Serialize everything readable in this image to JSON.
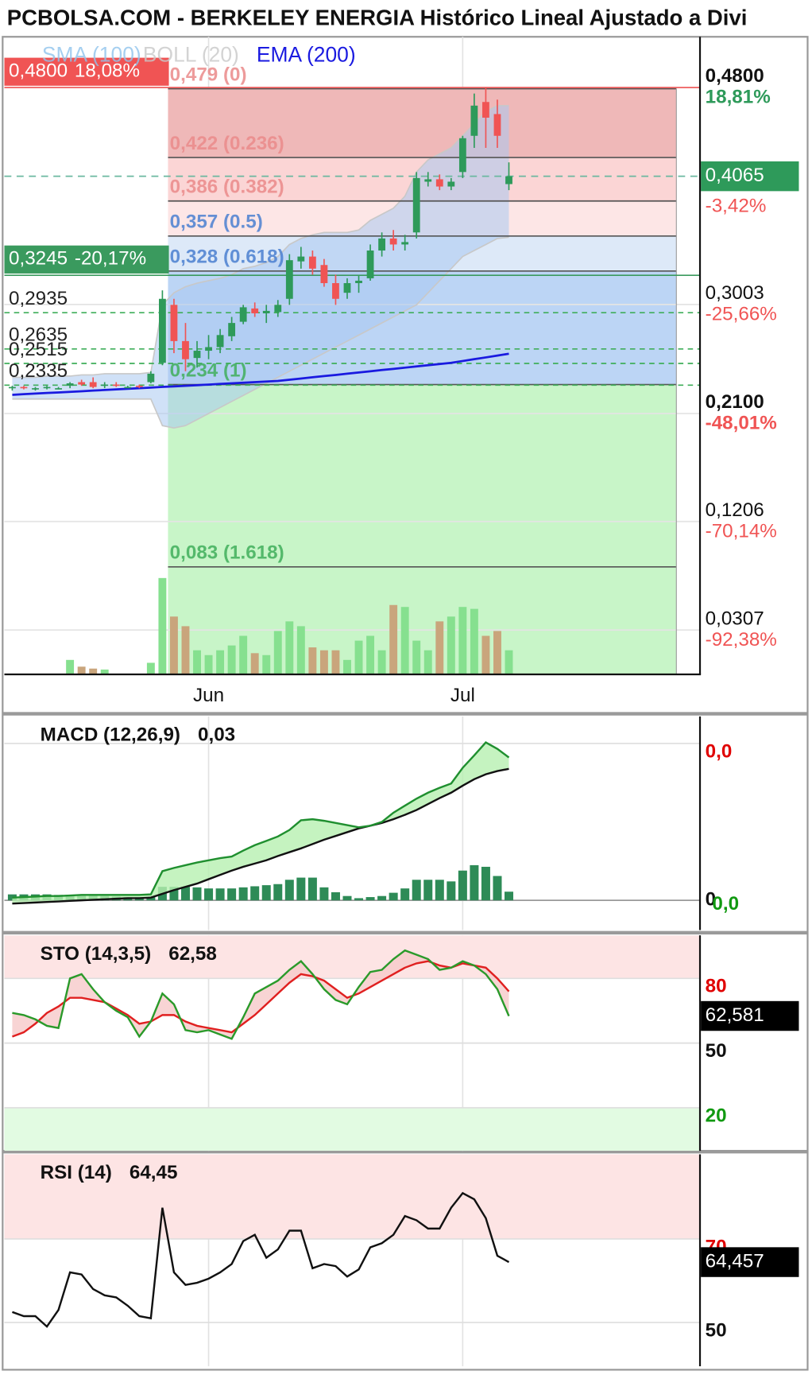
{
  "title": "PCBOLSA.COM - BERKELEY ENERGIA Histórico Lineal Ajustado a Divi",
  "chart_data": [
    {
      "type": "candlestick",
      "categories": [
        null,
        null,
        null,
        null,
        null,
        null,
        null,
        null,
        null,
        null,
        null,
        null,
        null,
        null,
        null,
        null,
        null,
        "Jun",
        null,
        null,
        null,
        null,
        null,
        null,
        null,
        null,
        null,
        null,
        null,
        null,
        null,
        null,
        null,
        null,
        null,
        null,
        null,
        null,
        null,
        "Jul",
        null,
        null,
        null,
        null
      ],
      "open": [
        0.231,
        0.232,
        0.231,
        0.232,
        0.231,
        0.233,
        0.236,
        0.236,
        0.233,
        0.234,
        0.232,
        0.233,
        0.236,
        0.252,
        0.3,
        0.27,
        0.256,
        0.262,
        0.265,
        0.274,
        0.286,
        0.297,
        0.293,
        0.294,
        0.305,
        0.336,
        0.34,
        0.333,
        0.318,
        0.31,
        0.318,
        0.322,
        0.345,
        0.355,
        0.35,
        0.36,
        0.402,
        0.404,
        0.398,
        0.41,
        0.44,
        0.468,
        0.458,
        0.4
      ],
      "high": [
        0.233,
        0.233,
        0.232,
        0.233,
        0.232,
        0.236,
        0.238,
        0.24,
        0.236,
        0.236,
        0.233,
        0.234,
        0.245,
        0.312,
        0.305,
        0.285,
        0.27,
        0.275,
        0.28,
        0.29,
        0.3,
        0.302,
        0.3,
        0.304,
        0.342,
        0.348,
        0.345,
        0.338,
        0.325,
        0.322,
        0.324,
        0.35,
        0.36,
        0.362,
        0.358,
        0.41,
        0.41,
        0.408,
        0.405,
        0.44,
        0.475,
        0.48,
        0.47,
        0.418
      ],
      "low": [
        0.229,
        0.23,
        0.229,
        0.23,
        0.23,
        0.231,
        0.233,
        0.231,
        0.231,
        0.232,
        0.231,
        0.231,
        0.235,
        0.25,
        0.26,
        0.245,
        0.248,
        0.255,
        0.26,
        0.27,
        0.284,
        0.29,
        0.285,
        0.29,
        0.3,
        0.33,
        0.325,
        0.315,
        0.3,
        0.305,
        0.31,
        0.32,
        0.34,
        0.345,
        0.345,
        0.355,
        0.398,
        0.395,
        0.395,
        0.405,
        0.43,
        0.43,
        0.43,
        0.395
      ],
      "close": [
        0.232,
        0.231,
        0.231,
        0.232,
        0.231,
        0.235,
        0.234,
        0.232,
        0.234,
        0.233,
        0.232,
        0.232,
        0.243,
        0.305,
        0.27,
        0.255,
        0.262,
        0.265,
        0.275,
        0.285,
        0.298,
        0.293,
        0.295,
        0.3,
        0.337,
        0.34,
        0.33,
        0.318,
        0.305,
        0.318,
        0.32,
        0.345,
        0.355,
        0.35,
        0.352,
        0.405,
        0.404,
        0.398,
        0.402,
        0.438,
        0.465,
        0.455,
        0.44,
        0.4065
      ],
      "up_color": "#2e9a5a",
      "down_color": "#f05454",
      "volume": [
        0,
        0,
        0,
        0,
        0,
        15,
        8,
        6,
        5,
        0,
        0,
        0,
        12,
        100,
        60,
        50,
        25,
        20,
        25,
        30,
        40,
        22,
        20,
        45,
        55,
        50,
        28,
        25,
        25,
        15,
        35,
        40,
        25,
        72,
        70,
        35,
        25,
        55,
        60,
        70,
        68,
        40,
        45,
        25
      ],
      "volume_colors": [
        "#86e08f",
        "#c9a57c"
      ],
      "series": [
        {
          "name": "SMA (100)",
          "color": "#8fc3ec"
        },
        {
          "name": "BOLL (20)",
          "color": "#c8c8c8",
          "fill": "#a9c9f0",
          "upper": [
            0.24,
            0.24,
            0.24,
            0.241,
            0.241,
            0.241,
            0.242,
            0.242,
            0.243,
            0.243,
            0.243,
            0.243,
            0.244,
            0.3,
            0.31,
            0.315,
            0.318,
            0.32,
            0.322,
            0.325,
            0.33,
            0.332,
            0.335,
            0.34,
            0.35,
            0.355,
            0.358,
            0.36,
            0.36,
            0.36,
            0.362,
            0.37,
            0.375,
            0.38,
            0.39,
            0.41,
            0.42,
            0.425,
            0.43,
            0.44,
            0.45,
            0.46,
            0.465,
            0.465
          ],
          "lower": [
            0.222,
            0.222,
            0.222,
            0.222,
            0.222,
            0.222,
            0.222,
            0.222,
            0.222,
            0.222,
            0.222,
            0.222,
            0.222,
            0.2,
            0.198,
            0.2,
            0.205,
            0.21,
            0.215,
            0.22,
            0.225,
            0.23,
            0.235,
            0.24,
            0.245,
            0.25,
            0.255,
            0.26,
            0.265,
            0.27,
            0.275,
            0.28,
            0.285,
            0.29,
            0.295,
            0.3,
            0.31,
            0.32,
            0.33,
            0.34,
            0.345,
            0.35,
            0.355,
            0.356
          ]
        },
        {
          "name": "EMA (200)",
          "color": "#1a1ae0",
          "values": [
            0.2255,
            0.226,
            0.2265,
            0.227,
            0.2275,
            0.228,
            0.2285,
            0.229,
            0.2295,
            0.23,
            0.2305,
            0.231,
            0.2315,
            0.232,
            0.2325,
            0.233,
            0.2335,
            0.234,
            0.2345,
            0.235,
            0.2355,
            0.236,
            0.2365,
            0.237,
            0.238,
            0.239,
            0.24,
            0.241,
            0.242,
            0.243,
            0.244,
            0.245,
            0.246,
            0.247,
            0.248,
            0.249,
            0.25,
            0.251,
            0.252,
            0.2535,
            0.255,
            0.2565,
            0.258,
            0.2595
          ]
        }
      ],
      "ylim": [
        -0.006,
        0.522
      ],
      "yticks": [
        {
          "value": 0.48,
          "label": "0,4800"
        },
        {
          "value": 0.3003,
          "label": "0,3003"
        },
        {
          "value": 0.21,
          "label": "0,2100"
        },
        {
          "value": 0.1206,
          "label": "0,1206"
        },
        {
          "value": 0.0307,
          "label": "0,0307"
        }
      ],
      "ytick_bold": [
        true,
        false,
        true,
        false,
        false
      ],
      "ytick_changes": [
        {
          "value": 18.81,
          "label": "18,81%"
        },
        {
          "value": -25.66,
          "label": "-25,66%"
        },
        {
          "value": -48.01,
          "label": "-48,01%"
        },
        {
          "value": -70.14,
          "label": "-70,14%"
        },
        {
          "value": -92.38,
          "label": "-92,38%"
        }
      ],
      "ytick_change_colors": [
        "#2e9a5a",
        "#f05454",
        "#f05454",
        "#f05454",
        "#f05454"
      ],
      "current": {
        "value": 0.4065,
        "label": "0,4065",
        "color": "#2e9a5a",
        "change": {
          "value": -3.42,
          "label": "-3,42%"
        },
        "change_color": "#f05454"
      },
      "fib": {
        "levels": [
          {
            "value": 0.479,
            "label": "0,479 (0)"
          },
          {
            "value": 0.422,
            "label": "0,422 (0.236)"
          },
          {
            "value": 0.386,
            "label": "0,386 (0.382)"
          },
          {
            "value": 0.357,
            "label": "0,357 (0.5)"
          },
          {
            "value": 0.328,
            "label": "0,328 (0.618)"
          },
          {
            "value": 0.234,
            "label": "0,234 (1)"
          },
          {
            "value": 0.083,
            "label": "0,083 (1.618)"
          }
        ],
        "zone_colors": [
          "#efb8b8",
          "#fbd5d5",
          "#fde6e6",
          "#dde9f8",
          "#bcd5f5",
          "#c8f5c8",
          "#c8f5c8"
        ],
        "label_colors": [
          "#ea8a8a",
          "#ea8a8a",
          "#ea8a8a",
          "#4a7fd0",
          "#4a7fd0",
          "#3fae5a",
          "#3fae5a"
        ]
      },
      "left_levels": [
        {
          "value": 0.48,
          "label": "0,4800",
          "change": {
            "value": 18.08,
            "label": "18,08%"
          },
          "color": "#f05454"
        },
        {
          "value": 0.3245,
          "label": "0,3245",
          "change": {
            "value": -20.17,
            "label": "-20,17%"
          },
          "color": "#3a9a5e"
        },
        {
          "value": 0.2935,
          "label": "0,2935"
        },
        {
          "value": 0.2635,
          "label": "0,2635"
        },
        {
          "value": 0.2515,
          "label": "0,2515"
        },
        {
          "value": 0.2335,
          "label": "0,2335"
        }
      ],
      "grid": true
    },
    {
      "type": "line",
      "label": "MACD (12,26,9)",
      "value_label": {
        "value": 0.03,
        "label": "0,03"
      },
      "series": [
        {
          "color": "#1f8f2f",
          "values": [
            0.0005,
            0.0006,
            0.0007,
            0.0008,
            0.0008,
            0.0009,
            0.001,
            0.001,
            0.001,
            0.001,
            0.001,
            0.001,
            0.0011,
            0.0054,
            0.006,
            0.0065,
            0.007,
            0.0074,
            0.0078,
            0.0081,
            0.0092,
            0.0102,
            0.011,
            0.0118,
            0.013,
            0.0148,
            0.015,
            0.0147,
            0.0143,
            0.0139,
            0.0135,
            0.0138,
            0.0145,
            0.0162,
            0.0175,
            0.0188,
            0.0199,
            0.0208,
            0.0216,
            0.0245,
            0.0268,
            0.0292,
            0.028,
            0.0264
          ]
        },
        {
          "color": "#111111",
          "values": [
            -0.0006,
            -0.0005,
            -0.0004,
            -0.0003,
            -0.0002,
            -0.0001,
            0,
            0.0001,
            0.0002,
            0.0003,
            0.0004,
            0.0004,
            0.0005,
            0.0012,
            0.0019,
            0.0025,
            0.0031,
            0.0039,
            0.0047,
            0.0055,
            0.0062,
            0.0068,
            0.0074,
            0.0082,
            0.0089,
            0.0096,
            0.0104,
            0.0112,
            0.0119,
            0.0126,
            0.0133,
            0.0138,
            0.0143,
            0.015,
            0.0158,
            0.0167,
            0.0178,
            0.0189,
            0.0199,
            0.0212,
            0.0224,
            0.0233,
            0.0239,
            0.0243
          ]
        }
      ],
      "fill_color": "#b7f0b0",
      "histogram": {
        "color": "#2e8b57",
        "values": [
          0.0011,
          0.0011,
          0.0011,
          0.0011,
          0.001,
          0.001,
          0.001,
          0.0009,
          0.0008,
          0.0007,
          0.0006,
          0.0006,
          0.0006,
          0.0025,
          0.0025,
          0.0025,
          0.0024,
          0.0022,
          0.0022,
          0.0022,
          0.0024,
          0.0026,
          0.0028,
          0.003,
          0.0038,
          0.0042,
          0.0042,
          0.0024,
          0.0015,
          0.0008,
          0.0004,
          0.0006,
          0.0008,
          0.0014,
          0.0022,
          0.0038,
          0.0038,
          0.0038,
          0.0035,
          0.0055,
          0.0065,
          0.0062,
          0.0045,
          0.0016
        ]
      },
      "histogram_label": {
        "value": 0,
        "label": "0,0",
        "color": "#119911"
      },
      "ylim": [
        -0.0055,
        0.034
      ],
      "yticks": [
        {
          "value": 0.029,
          "label": "0,0"
        },
        0
      ],
      "ytick_colors": [
        "#e00000",
        "#111111"
      ],
      "grid": true
    },
    {
      "type": "line",
      "label": "STO (14,3,5)",
      "value_label": {
        "value": 62.58,
        "label": "62,58"
      },
      "series": [
        {
          "color": "#2a9a2a",
          "values": [
            64,
            63,
            61,
            58,
            57,
            80,
            82,
            75,
            69,
            65,
            62,
            53,
            60,
            73,
            68,
            56,
            55,
            56,
            54,
            52,
            62,
            73,
            76,
            79,
            84,
            88,
            82,
            75,
            70,
            68,
            76,
            83,
            84,
            89,
            93,
            91,
            89,
            84,
            85,
            88,
            86,
            82,
            75,
            62.58
          ]
        },
        {
          "color": "#e02020",
          "values": [
            53,
            55,
            59,
            64,
            67,
            71,
            71,
            70,
            69,
            66,
            63,
            59,
            60,
            63,
            63,
            60,
            58,
            57,
            56,
            55,
            59,
            63,
            68,
            73,
            78,
            82,
            81,
            79,
            75,
            71,
            73,
            76,
            79,
            82,
            85,
            87,
            88,
            86,
            85,
            87,
            86,
            85,
            80,
            74
          ]
        }
      ],
      "fill_color": "#f6c9c9",
      "bands": [
        {
          "from": 80,
          "to": 100,
          "color": "#fde4e4"
        },
        {
          "from": 0,
          "to": 20,
          "color": "#e2fbe2"
        }
      ],
      "current": {
        "value": 62.581,
        "label": "62,581"
      },
      "ylim": [
        0,
        100
      ],
      "yticks": [
        80,
        50,
        20
      ],
      "ytick_colors": [
        "#e00000",
        "#111111",
        "#119911"
      ],
      "grid": true
    },
    {
      "type": "line",
      "label": "RSI (14)",
      "value_label": {
        "value": 64.45,
        "label": "64,45"
      },
      "series": [
        {
          "color": "#111111",
          "values": [
            52.5,
            51.5,
            51.5,
            49,
            53,
            62,
            61.5,
            58,
            56.5,
            56,
            54,
            51.5,
            51,
            77.5,
            62,
            59,
            59.5,
            60.5,
            62,
            64,
            69.5,
            71,
            65.5,
            67.5,
            72,
            72,
            63,
            64,
            63.5,
            61,
            62.7,
            68,
            69,
            71,
            75.5,
            74.5,
            72.5,
            72.5,
            77.5,
            81,
            79.5,
            75,
            66,
            64.45
          ]
        }
      ],
      "bands": [
        {
          "from": 70,
          "to": 90.3,
          "color": "#fde4e4"
        }
      ],
      "current": {
        "value": 64.457,
        "label": "64,457"
      },
      "ylim": [
        39.5,
        90.3
      ],
      "yticks": [
        70,
        50
      ],
      "ytick_colors": [
        "#e00000",
        "#111111"
      ],
      "grid": true
    }
  ]
}
